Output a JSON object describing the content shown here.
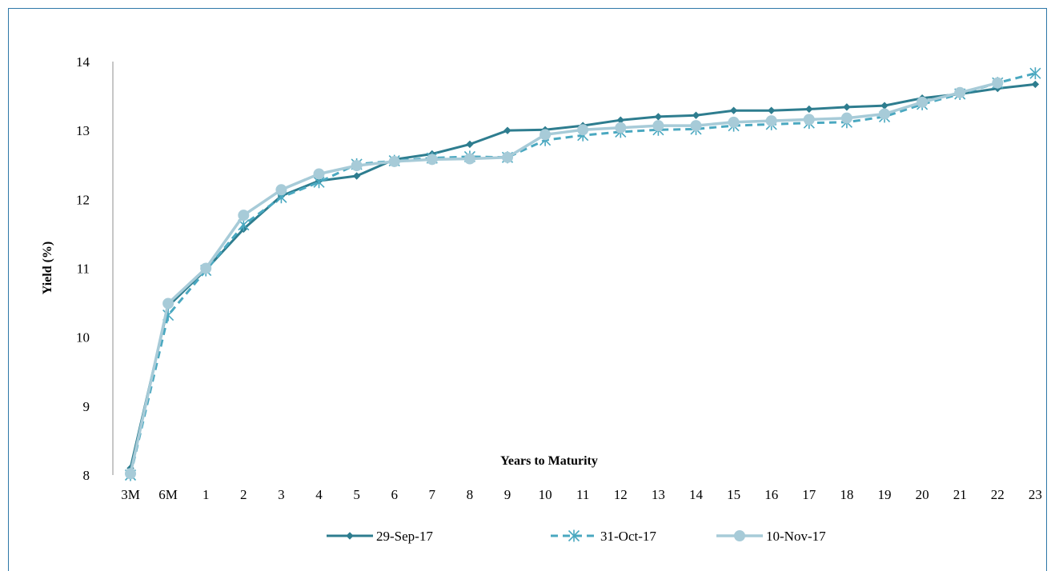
{
  "chart_data": {
    "type": "line",
    "title": "",
    "xlabel": "Years to Maturity",
    "ylabel": "Yield (%)",
    "categories": [
      "3M",
      "6M",
      "1",
      "2",
      "3",
      "4",
      "5",
      "6",
      "7",
      "8",
      "9",
      "10",
      "11",
      "12",
      "13",
      "14",
      "15",
      "16",
      "17",
      "18",
      "19",
      "20",
      "21",
      "22",
      "23"
    ],
    "ylim": [
      8,
      14
    ],
    "yticks": [
      "8",
      "9",
      "10",
      "11",
      "12",
      "13",
      "14"
    ],
    "grid": false,
    "legend_position": "bottom",
    "series": [
      {
        "name": "29-Sep-17",
        "color": "#2e7d8f",
        "marker": "diamond",
        "dash": "solid",
        "values": [
          8.1,
          10.45,
          10.98,
          11.57,
          12.05,
          12.27,
          12.34,
          12.58,
          12.66,
          12.8,
          13.0,
          13.01,
          13.07,
          13.15,
          13.2,
          13.22,
          13.29,
          13.29,
          13.31,
          13.34,
          13.36,
          13.47,
          13.53,
          13.61,
          13.67
        ]
      },
      {
        "name": "31-Oct-17",
        "color": "#4aa8c0",
        "marker": "asterisk",
        "dash": "dashed",
        "values": [
          8.0,
          10.32,
          10.97,
          11.63,
          12.03,
          12.25,
          12.51,
          12.56,
          12.6,
          12.62,
          12.61,
          12.86,
          12.93,
          12.98,
          13.01,
          13.02,
          13.07,
          13.09,
          13.11,
          13.12,
          13.2,
          13.38,
          13.53,
          13.69,
          13.83
        ]
      },
      {
        "name": "10-Nov-17",
        "color": "#a7cbd8",
        "marker": "circle",
        "dash": "solid",
        "values": [
          8.02,
          10.49,
          11.0,
          11.77,
          12.14,
          12.37,
          12.49,
          12.55,
          12.58,
          12.59,
          12.61,
          12.94,
          13.01,
          13.04,
          13.07,
          13.07,
          13.12,
          13.14,
          13.16,
          13.18,
          13.24,
          13.41,
          13.55,
          13.69,
          null
        ]
      }
    ]
  }
}
